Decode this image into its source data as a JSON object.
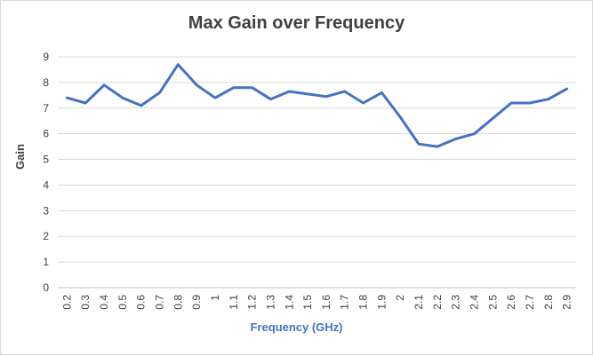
{
  "chart_data": {
    "type": "line",
    "title": "Max Gain over Frequency",
    "xlabel": "Frequency (GHz)",
    "ylabel": "Gain",
    "ylim": [
      0,
      9
    ],
    "yticks": [
      "0",
      "1",
      "2",
      "3",
      "4",
      "5",
      "6",
      "7",
      "8",
      "9"
    ],
    "grid": true,
    "legend": "none",
    "categories": [
      "0.2",
      "0.3",
      "0.4",
      "0.5",
      "0.6",
      "0.7",
      "0.8",
      "0.9",
      "1",
      "1.1",
      "1.2",
      "1.3",
      "1.4",
      "1.5",
      "1.6",
      "1.7",
      "1.8",
      "1.9",
      "2",
      "2.1",
      "2.2",
      "2.3",
      "2.4",
      "2.5",
      "2.6",
      "2.7",
      "2.8",
      "2.9"
    ],
    "values": [
      7.4,
      7.2,
      7.9,
      7.4,
      7.1,
      7.6,
      8.7,
      7.9,
      7.4,
      7.8,
      7.8,
      7.35,
      7.65,
      7.55,
      7.45,
      7.65,
      7.2,
      7.6,
      6.65,
      5.6,
      5.5,
      5.8,
      6.0,
      6.6,
      7.2,
      7.2,
      7.35,
      7.75
    ],
    "line_color": "#4472c4"
  }
}
